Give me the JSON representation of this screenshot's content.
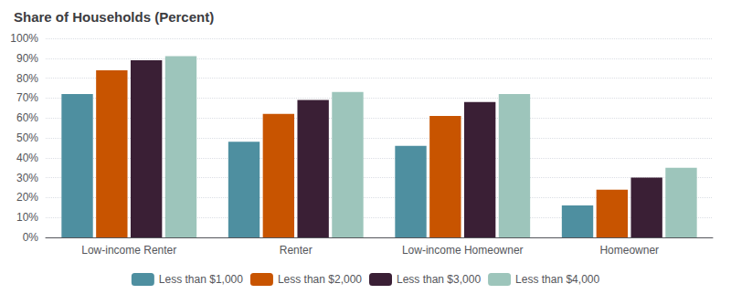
{
  "chart_data": {
    "type": "bar",
    "title": "Share of Households (Percent)",
    "categories": [
      "Low-income Renter",
      "Renter",
      "Low-income Homeowner",
      "Homeowner"
    ],
    "series": [
      {
        "name": "Less than $1,000",
        "color": "#4e8fa0",
        "values": [
          72,
          48,
          46,
          16
        ]
      },
      {
        "name": "Less than $2,000",
        "color": "#c85400",
        "values": [
          84,
          62,
          61,
          24
        ]
      },
      {
        "name": "Less than $3,000",
        "color": "#3a1f35",
        "values": [
          89,
          69,
          68,
          30
        ]
      },
      {
        "name": "Less than $4,000",
        "color": "#9dc5bb",
        "values": [
          91,
          73,
          72,
          35
        ]
      }
    ],
    "ylim": [
      0,
      100
    ],
    "yticks": [
      {
        "value": 0,
        "label": "0%"
      },
      {
        "value": 10,
        "label": "10%"
      },
      {
        "value": 20,
        "label": "20%"
      },
      {
        "value": 30,
        "label": "30%"
      },
      {
        "value": 40,
        "label": "40%"
      },
      {
        "value": 50,
        "label": "50%"
      },
      {
        "value": 60,
        "label": "60%"
      },
      {
        "value": 70,
        "label": "70%"
      },
      {
        "value": 80,
        "label": "80%"
      },
      {
        "value": 90,
        "label": "90%"
      },
      {
        "value": 100,
        "label": "100%"
      }
    ],
    "grid": true,
    "legend": "bottom"
  }
}
